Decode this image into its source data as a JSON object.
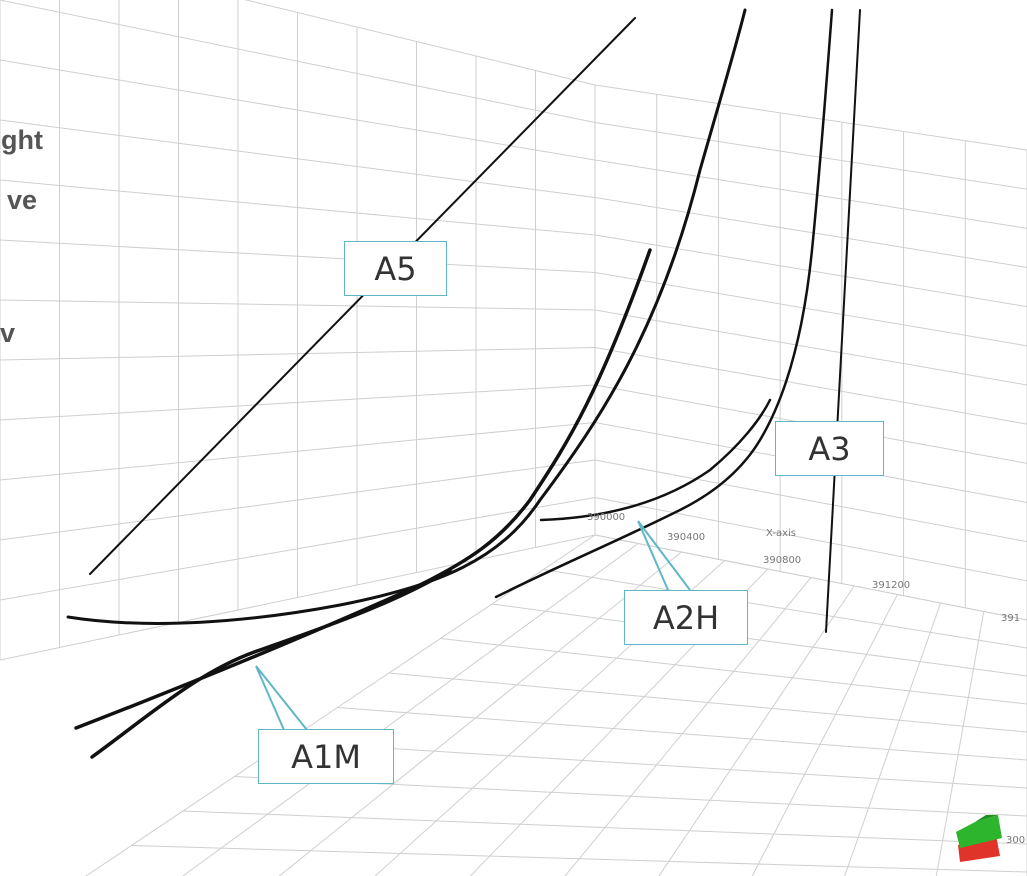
{
  "side_text": [
    "ght",
    "ve",
    "v"
  ],
  "axis": {
    "title": "X-axis",
    "ticks": [
      "390000",
      "390400",
      "390800",
      "391200",
      "391"
    ],
    "corner_tick": "300"
  },
  "wells": [
    {
      "label": "A5"
    },
    {
      "label": "A3"
    },
    {
      "label": "A2H"
    },
    {
      "label": "A1M"
    }
  ],
  "colors": {
    "grid": "#cfcfcf",
    "well": "#111111",
    "callout_border": "#5fb7c6",
    "compass_green": "#2db52d",
    "compass_red": "#e0342b"
  }
}
